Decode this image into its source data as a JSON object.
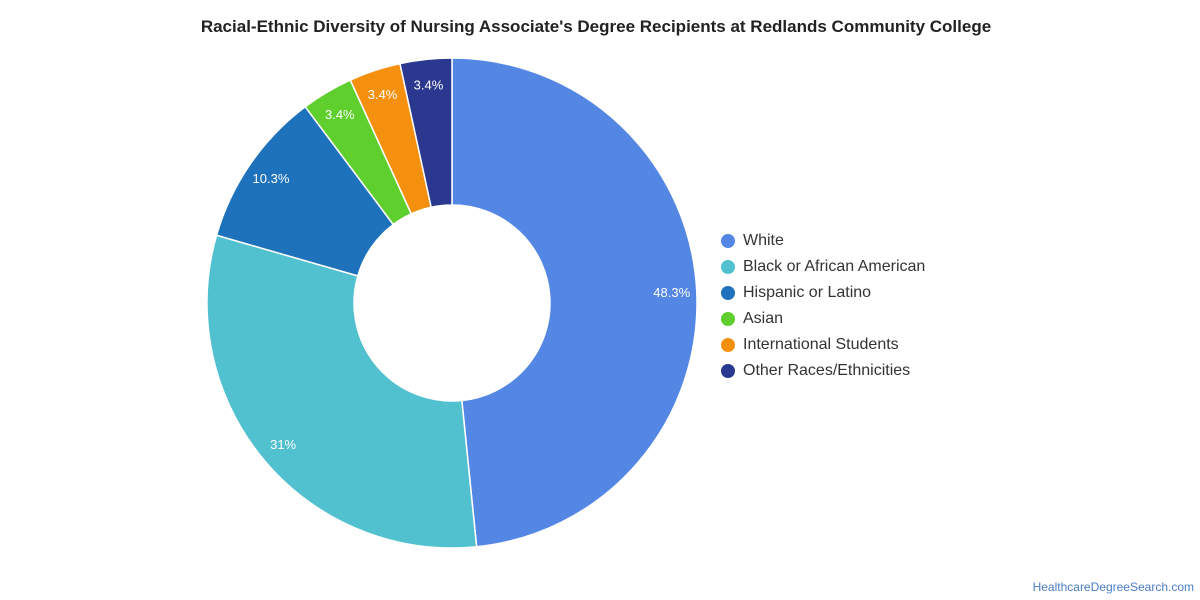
{
  "chart_data": {
    "type": "pie",
    "title": "Racial-Ethnic Diversity of Nursing Associate's Degree Recipients at Redlands Community College",
    "legend_position": "right",
    "slices": [
      {
        "name": "White",
        "value": 48.3,
        "label": "48.3%",
        "color": "#5486e4"
      },
      {
        "name": "Black or African American",
        "value": 31.0,
        "label": "31%",
        "color": "#52c1cf"
      },
      {
        "name": "Hispanic or Latino",
        "value": 10.3,
        "label": "10.3%",
        "color": "#1e72bc"
      },
      {
        "name": "Asian",
        "value": 3.4,
        "label": "3.4%",
        "color": "#5fcf2e"
      },
      {
        "name": "International Students",
        "value": 3.4,
        "label": "3.4%",
        "color": "#f5900f"
      },
      {
        "name": "Other Races/Ethnicities",
        "value": 3.4,
        "label": "3.4%",
        "color": "#2a388f"
      }
    ]
  },
  "source": "HealthcareDegreeSearch.com"
}
